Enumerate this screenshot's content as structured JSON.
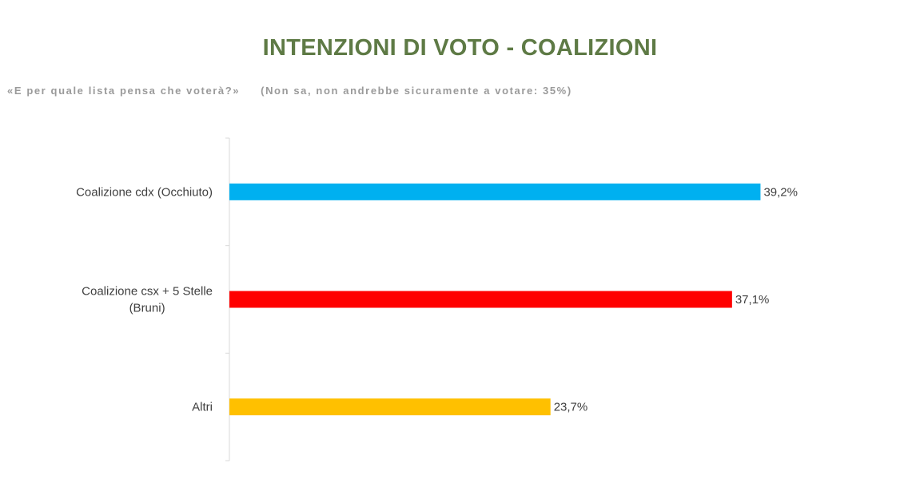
{
  "title": "INTENZIONI DI VOTO - COALIZIONI",
  "subtitle": {
    "question": "«E per quale lista pensa che voterà?»",
    "note": "(Non sa, non andrebbe sicuramente a votare: 35%)"
  },
  "chart_data": {
    "type": "bar",
    "orientation": "horizontal",
    "title": "INTENZIONI DI VOTO - COALIZIONI",
    "xlabel": "",
    "ylabel": "",
    "grid": false,
    "legend": "none",
    "categories": [
      [
        "Coalizione cdx (Occhiuto)"
      ],
      [
        "Coalizione csx + 5 Stelle",
        "(Bruni)"
      ],
      [
        "Altri"
      ]
    ],
    "values": [
      39.2,
      37.1,
      23.7
    ],
    "data_labels": [
      "39,2%",
      "37,1%",
      "23,7%"
    ],
    "colors": [
      "#00b0f0",
      "#ff0000",
      "#ffc000"
    ]
  }
}
